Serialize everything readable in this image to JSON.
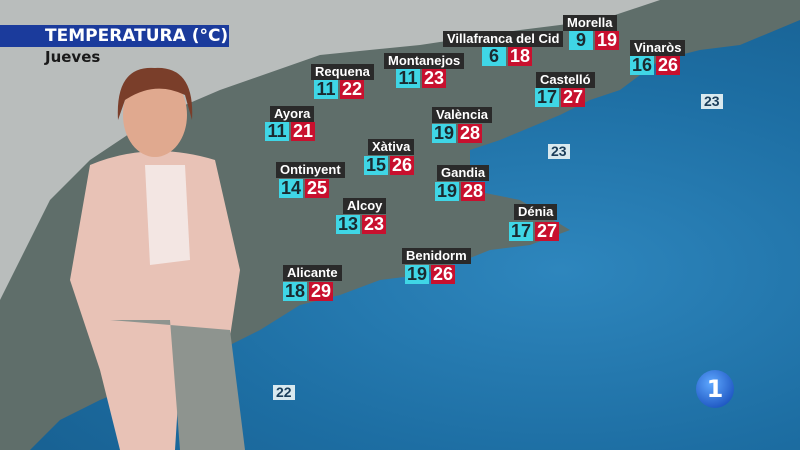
{
  "header": {
    "title": "TEMPERATURA (°C)",
    "day": "Jueves"
  },
  "colors": {
    "title_bar": "#1b3b9c",
    "min": "#3fd6e6",
    "max": "#c8102e",
    "label": "#2a2a2a"
  },
  "cities": [
    {
      "name": "Villafranca del Cid",
      "min": "6",
      "max": "18"
    },
    {
      "name": "Morella",
      "min": "9",
      "max": "19"
    },
    {
      "name": "Vinaròs",
      "min": "16",
      "max": "26"
    },
    {
      "name": "Montanejos",
      "min": "11",
      "max": "23"
    },
    {
      "name": "Requena",
      "min": "11",
      "max": "22"
    },
    {
      "name": "Castelló",
      "min": "17",
      "max": "27"
    },
    {
      "name": "Ayora",
      "min": "11",
      "max": "21"
    },
    {
      "name": "València",
      "min": "19",
      "max": "28"
    },
    {
      "name": "Xàtiva",
      "min": "15",
      "max": "26"
    },
    {
      "name": "Ontinyent",
      "min": "14",
      "max": "25"
    },
    {
      "name": "Gandia",
      "min": "19",
      "max": "28"
    },
    {
      "name": "Alcoy",
      "min": "13",
      "max": "23"
    },
    {
      "name": "Dénia",
      "min": "17",
      "max": "27"
    },
    {
      "name": "Benidorm",
      "min": "19",
      "max": "26"
    },
    {
      "name": "Alicante",
      "min": "18",
      "max": "29"
    }
  ],
  "sea_temps": [
    "23",
    "23",
    "22"
  ],
  "channel_logo": "1"
}
